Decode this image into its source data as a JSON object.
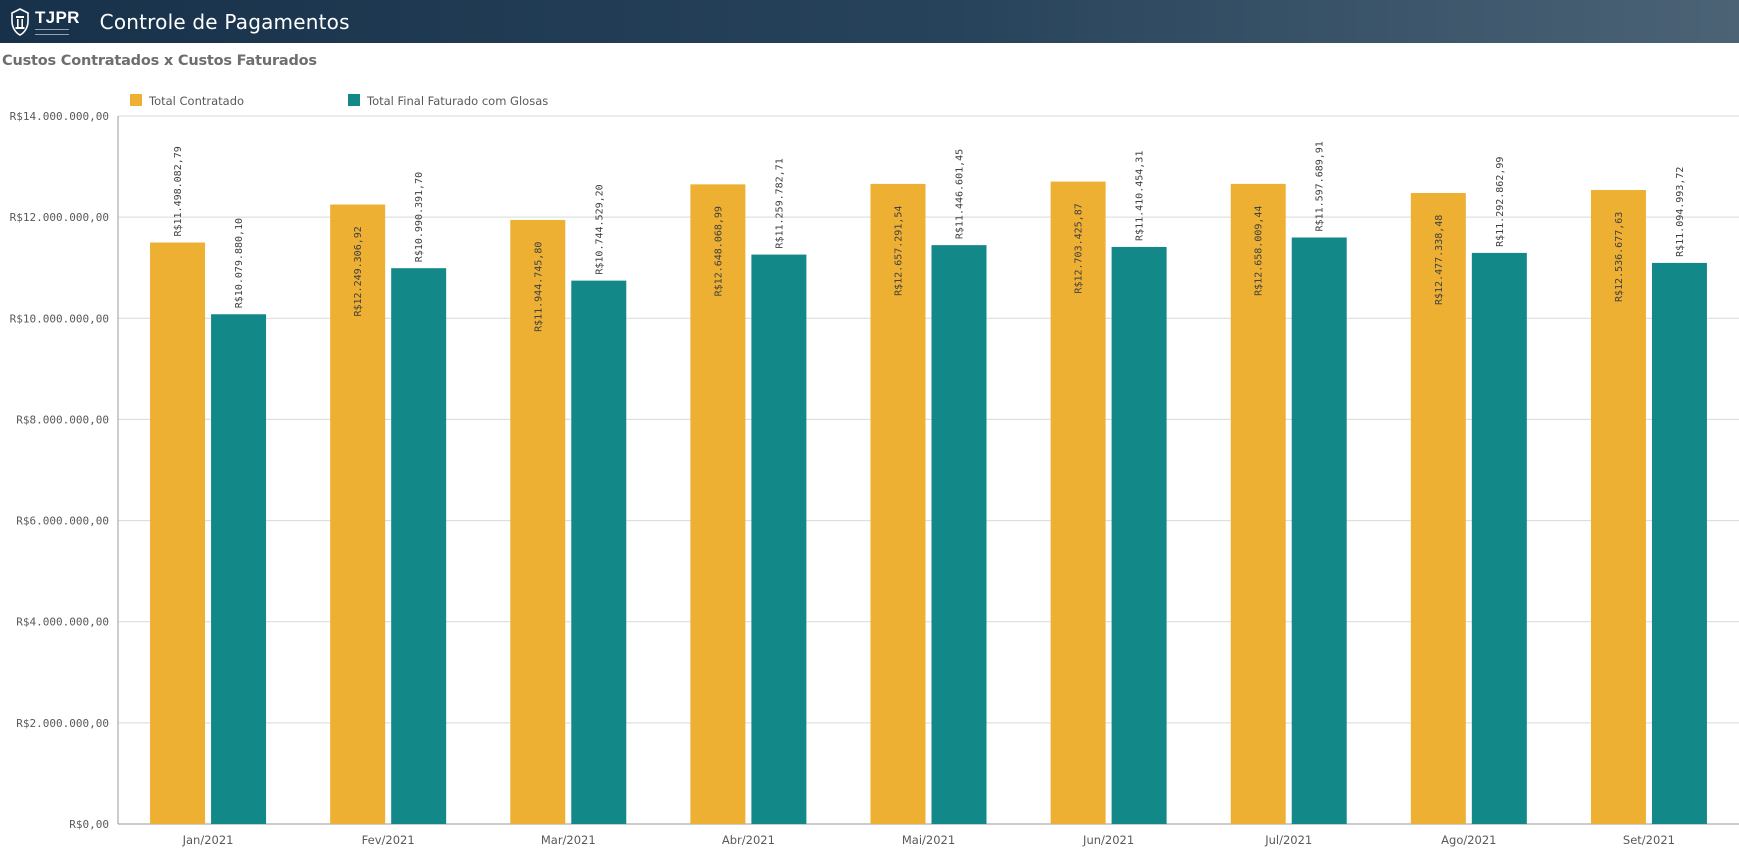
{
  "header": {
    "logo_text": "TJPR",
    "title": "Controle de Pagamentos",
    "background": "#1b3550"
  },
  "chart_data": {
    "type": "bar",
    "title": "Custos Contratados x Custos Faturados",
    "xlabel": "",
    "ylabel": "",
    "categories": [
      "Jan/2021",
      "Fev/2021",
      "Mar/2021",
      "Abr/2021",
      "Mai/2021",
      "Jun/2021",
      "Jul/2021",
      "Ago/2021",
      "Set/2021"
    ],
    "ylim": [
      0,
      14000000
    ],
    "y_ticks": [
      0,
      2000000,
      4000000,
      6000000,
      8000000,
      10000000,
      12000000,
      14000000
    ],
    "y_tick_labels": [
      "R$0,00",
      "R$2.000.000,00",
      "R$4.000.000,00",
      "R$6.000.000,00",
      "R$8.000.000,00",
      "R$10.000.000,00",
      "R$12.000.000,00",
      "R$14.000.000,00"
    ],
    "grid": true,
    "legend_position": "top-left",
    "series": [
      {
        "name": "Total Contratado",
        "color": "#EDB033",
        "values": [
          11498082.79,
          12249306.92,
          11944745.8,
          12648068.99,
          12657291.54,
          12703425.87,
          12658009.44,
          12477338.48,
          12536677.63
        ],
        "labels": [
          "R$11.498.082,79",
          "R$12.249.306,92",
          "R$11.944.745,80",
          "R$12.648.068,99",
          "R$12.657.291,54",
          "R$12.703.425,87",
          "R$12.658.009,44",
          "R$12.477.338,48",
          "R$12.536.677,63"
        ]
      },
      {
        "name": "Total Final Faturado com Glosas",
        "color": "#138889",
        "values": [
          10079880.1,
          10990391.7,
          10744529.2,
          11259782.71,
          11446601.45,
          11410454.31,
          11597689.91,
          11292862.99,
          11094993.72
        ],
        "labels": [
          "R$10.079.880,10",
          "R$10.990.391,70",
          "R$10.744.529,20",
          "R$11.259.782,71",
          "R$11.446.601,45",
          "R$11.410.454,31",
          "R$11.597.689,91",
          "R$11.292.862,99",
          "R$11.094.993,72"
        ]
      }
    ]
  }
}
